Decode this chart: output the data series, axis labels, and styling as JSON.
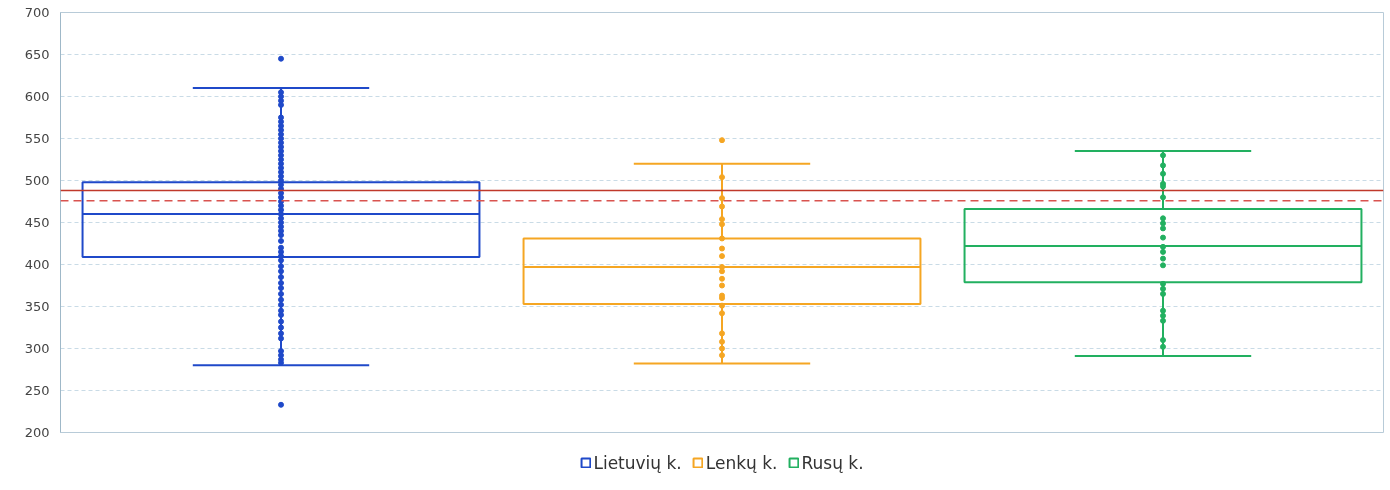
{
  "chart_data": {
    "type": "box",
    "categories": [
      null,
      null,
      null
    ],
    "series": [
      {
        "name": "Lietuvių k.",
        "color": "#1f49c9",
        "boxes": [
          {
            "low": 280,
            "q1": 409,
            "median": 460,
            "q3": 498,
            "high": 610,
            "outliers": [
              645,
              233,
              283,
              287,
              292,
              297,
              312,
              318,
              325,
              332,
              340,
              345,
              352,
              358,
              365,
              372,
              378,
              385,
              392,
              398,
              405,
              410,
              415,
              420,
              428,
              435,
              440,
              445,
              450,
              455,
              460,
              465,
              470,
              475,
              480,
              485,
              490,
              495,
              500,
              505,
              510,
              515,
              520,
              525,
              530,
              535,
              540,
              545,
              550,
              555,
              560,
              565,
              570,
              575,
              590,
              595,
              600,
              605
            ]
          },
          null,
          null
        ]
      },
      {
        "name": "Lenkų k.",
        "color": "#f5a623",
        "boxes": [
          null,
          {
            "low": 282,
            "q1": 353,
            "median": 397,
            "q3": 431,
            "high": 520,
            "outliers": [
              548,
              504,
              479,
              469,
              454,
              448,
              431,
              419,
              410,
              397,
              392,
              383,
              375,
              363,
              360,
              351,
              342,
              318,
              308,
              300,
              292
            ]
          },
          null
        ]
      },
      {
        "name": "Rusų k.",
        "color": "#22b060",
        "boxes": [
          null,
          null,
          {
            "low": 291,
            "q1": 379,
            "median": 422,
            "q3": 466,
            "high": 535,
            "outliers": [
              530,
              518,
              508,
              496,
              493,
              480,
              455,
              449,
              443,
              432,
              421,
              415,
              407,
              399,
              377,
              371,
              365,
              345,
              339,
              333,
              310,
              302
            ]
          }
        ]
      }
    ],
    "ylim": [
      200,
      700
    ],
    "yticks": [
      200,
      250,
      300,
      350,
      400,
      450,
      500,
      550,
      600,
      650,
      700
    ],
    "grid": "y",
    "legend": "bottom",
    "marker": "circle",
    "ref_lines": [
      {
        "axis": "y",
        "value": 488,
        "color": "#c0392b",
        "line_style": "solid"
      },
      {
        "axis": "y",
        "value": 476,
        "color": "#d9534f",
        "line_style": "dashed"
      }
    ]
  }
}
